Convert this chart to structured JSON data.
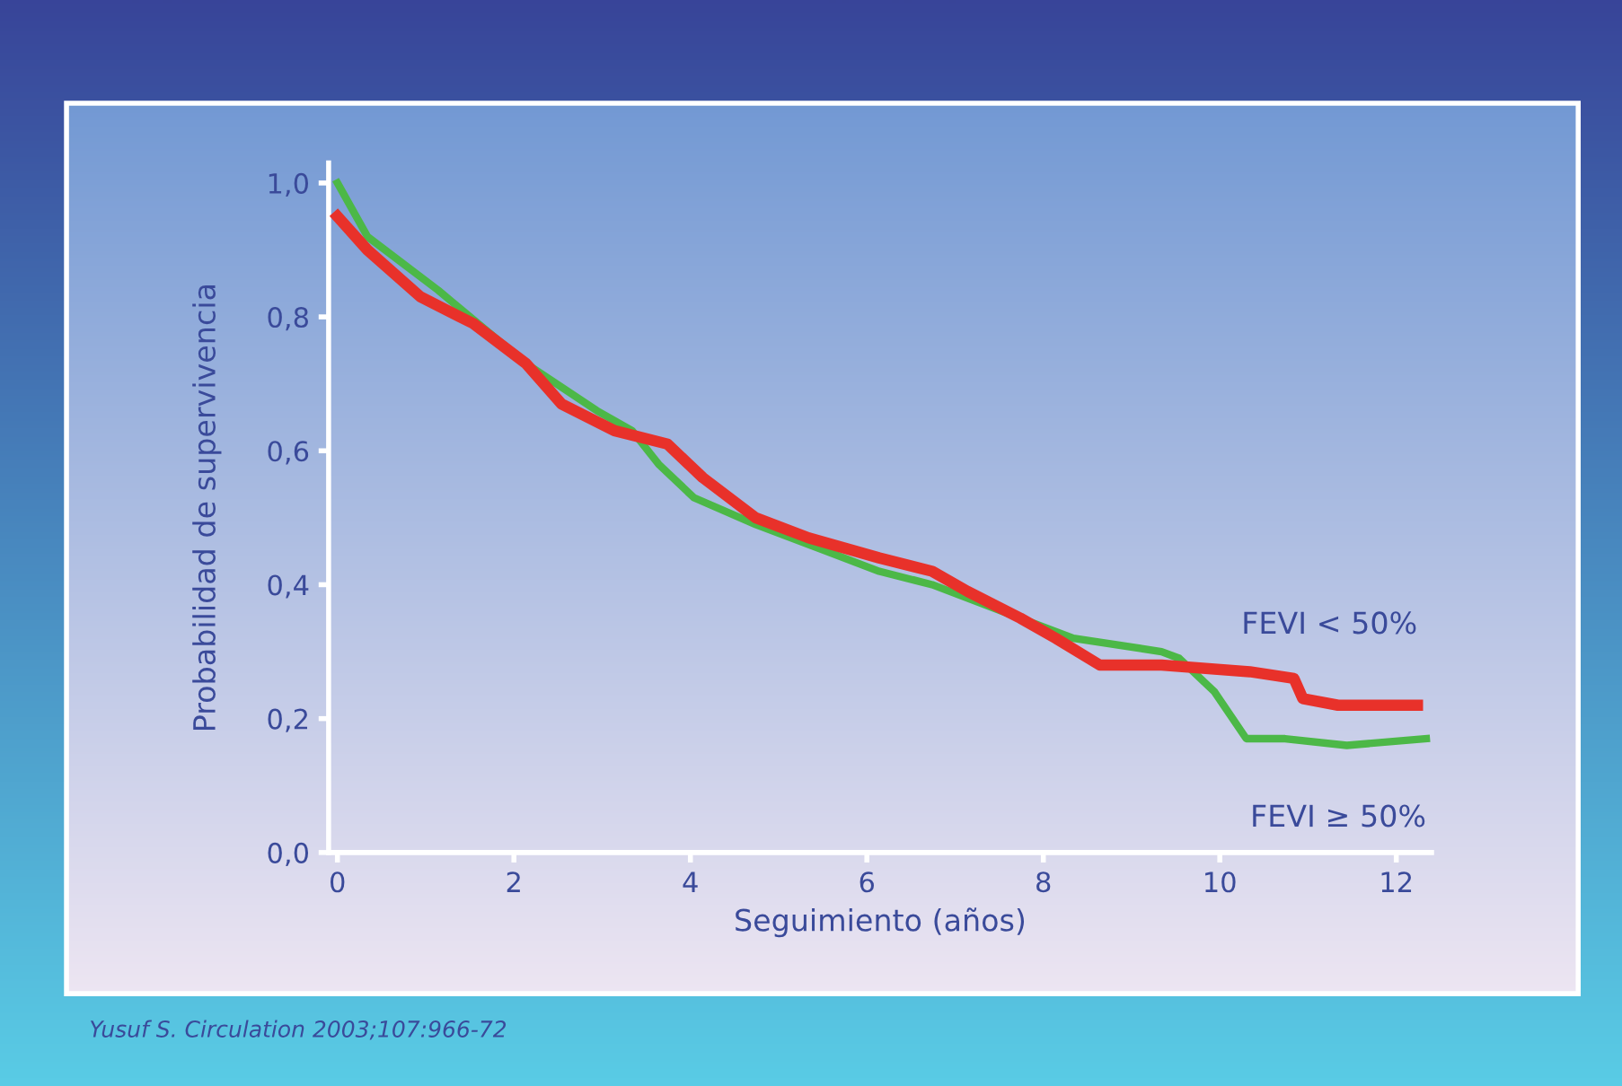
{
  "chart_data": {
    "type": "line",
    "xlabel": "Seguimiento (años)",
    "ylabel": "Probabilidad de supervivencia",
    "xlim": [
      -0.1,
      12.4
    ],
    "ylim": [
      0,
      1.03
    ],
    "xticks": [
      0,
      2,
      4,
      6,
      8,
      10,
      12
    ],
    "yticks": [
      {
        "value": 0,
        "label": "0,0"
      },
      {
        "value": 0.2,
        "label": "0,2"
      },
      {
        "value": 0.4,
        "label": "0,4"
      },
      {
        "value": 0.6,
        "label": "0,6"
      },
      {
        "value": 0.8,
        "label": "0,8"
      },
      {
        "value": 1.0,
        "label": "1,0"
      }
    ],
    "grid": false,
    "legend": false,
    "line_style": "solid",
    "marker": "none",
    "annotations": [
      "Yusuf S. Circulation 2003;107:966-72"
    ],
    "series": [
      {
        "name": "FEVI ≥ 50%",
        "color": "#4cb847",
        "x": [
          0,
          0.34,
          1.14,
          2.14,
          2.94,
          3.34,
          3.64,
          4.04,
          4.74,
          5.54,
          6.14,
          6.74,
          7.54,
          8.34,
          9.34,
          9.54,
          9.94,
          10.3,
          10.74,
          11.44,
          12.34
        ],
        "values": [
          1.0,
          0.92,
          0.84,
          0.73,
          0.66,
          0.63,
          0.58,
          0.53,
          0.49,
          0.45,
          0.42,
          0.4,
          0.36,
          0.32,
          0.3,
          0.29,
          0.24,
          0.17,
          0.17,
          0.16,
          0.17
        ]
      },
      {
        "name": "FEVI < 50%",
        "color": "#e8312a",
        "x": [
          0,
          0.34,
          0.94,
          1.54,
          2.14,
          2.54,
          3.14,
          3.74,
          4.14,
          4.74,
          5.34,
          6.14,
          6.74,
          7.14,
          7.74,
          8.14,
          8.64,
          9.34,
          10.34,
          10.84,
          10.94,
          11.34,
          12.24
        ],
        "values": [
          0.95,
          0.9,
          0.83,
          0.79,
          0.73,
          0.67,
          0.63,
          0.61,
          0.56,
          0.5,
          0.47,
          0.44,
          0.42,
          0.39,
          0.35,
          0.32,
          0.28,
          0.28,
          0.27,
          0.26,
          0.23,
          0.22,
          0.22
        ]
      }
    ]
  }
}
